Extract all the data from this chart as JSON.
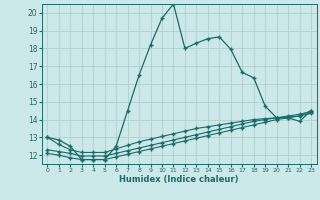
{
  "xlabel": "Humidex (Indice chaleur)",
  "bg_color": "#cde8e8",
  "line_color": "#1a6b6b",
  "grid_color": "#aacccc",
  "xlim": [
    -0.5,
    23.5
  ],
  "ylim": [
    11.5,
    20.5
  ],
  "yticks": [
    12,
    13,
    14,
    15,
    16,
    17,
    18,
    19,
    20
  ],
  "xticks": [
    0,
    1,
    2,
    3,
    4,
    5,
    6,
    7,
    8,
    9,
    10,
    11,
    12,
    13,
    14,
    15,
    16,
    17,
    18,
    19,
    20,
    21,
    22,
    23
  ],
  "s1_x": [
    0,
    1,
    2,
    3,
    4,
    5,
    6,
    7,
    8,
    9,
    10,
    11,
    12,
    13,
    14,
    15,
    16,
    17,
    18,
    19,
    20,
    21,
    22,
    23
  ],
  "s1_y": [
    13.0,
    12.85,
    12.5,
    11.75,
    11.75,
    11.75,
    12.5,
    14.5,
    16.5,
    18.2,
    19.7,
    20.5,
    18.0,
    18.3,
    18.55,
    18.65,
    17.95,
    16.65,
    16.35,
    14.75,
    14.1,
    14.1,
    13.9,
    14.5
  ],
  "s2_x": [
    0,
    1,
    2,
    3,
    4,
    5,
    6,
    7,
    8,
    9,
    10,
    11,
    12,
    13,
    14,
    15,
    16,
    17,
    18,
    19,
    20,
    21,
    22,
    23
  ],
  "s2_y": [
    13.0,
    12.6,
    12.3,
    12.15,
    12.15,
    12.15,
    12.35,
    12.55,
    12.75,
    12.9,
    13.05,
    13.2,
    13.35,
    13.5,
    13.6,
    13.7,
    13.8,
    13.9,
    14.0,
    14.05,
    14.1,
    14.15,
    14.2,
    14.5
  ],
  "s3_x": [
    0,
    1,
    2,
    3,
    4,
    5,
    6,
    7,
    8,
    9,
    10,
    11,
    12,
    13,
    14,
    15,
    16,
    17,
    18,
    19,
    20,
    21,
    22,
    23
  ],
  "s3_y": [
    12.3,
    12.2,
    12.1,
    11.95,
    11.95,
    11.95,
    12.1,
    12.25,
    12.4,
    12.55,
    12.7,
    12.85,
    13.0,
    13.15,
    13.3,
    13.45,
    13.6,
    13.75,
    13.9,
    14.0,
    14.1,
    14.2,
    14.3,
    14.45
  ],
  "s4_x": [
    0,
    1,
    2,
    3,
    4,
    5,
    6,
    7,
    8,
    9,
    10,
    11,
    12,
    13,
    14,
    15,
    16,
    17,
    18,
    19,
    20,
    21,
    22,
    23
  ],
  "s4_y": [
    12.1,
    12.0,
    11.85,
    11.75,
    11.75,
    11.75,
    11.9,
    12.05,
    12.2,
    12.35,
    12.5,
    12.65,
    12.8,
    12.95,
    13.1,
    13.25,
    13.4,
    13.55,
    13.7,
    13.85,
    14.0,
    14.1,
    14.2,
    14.35
  ]
}
